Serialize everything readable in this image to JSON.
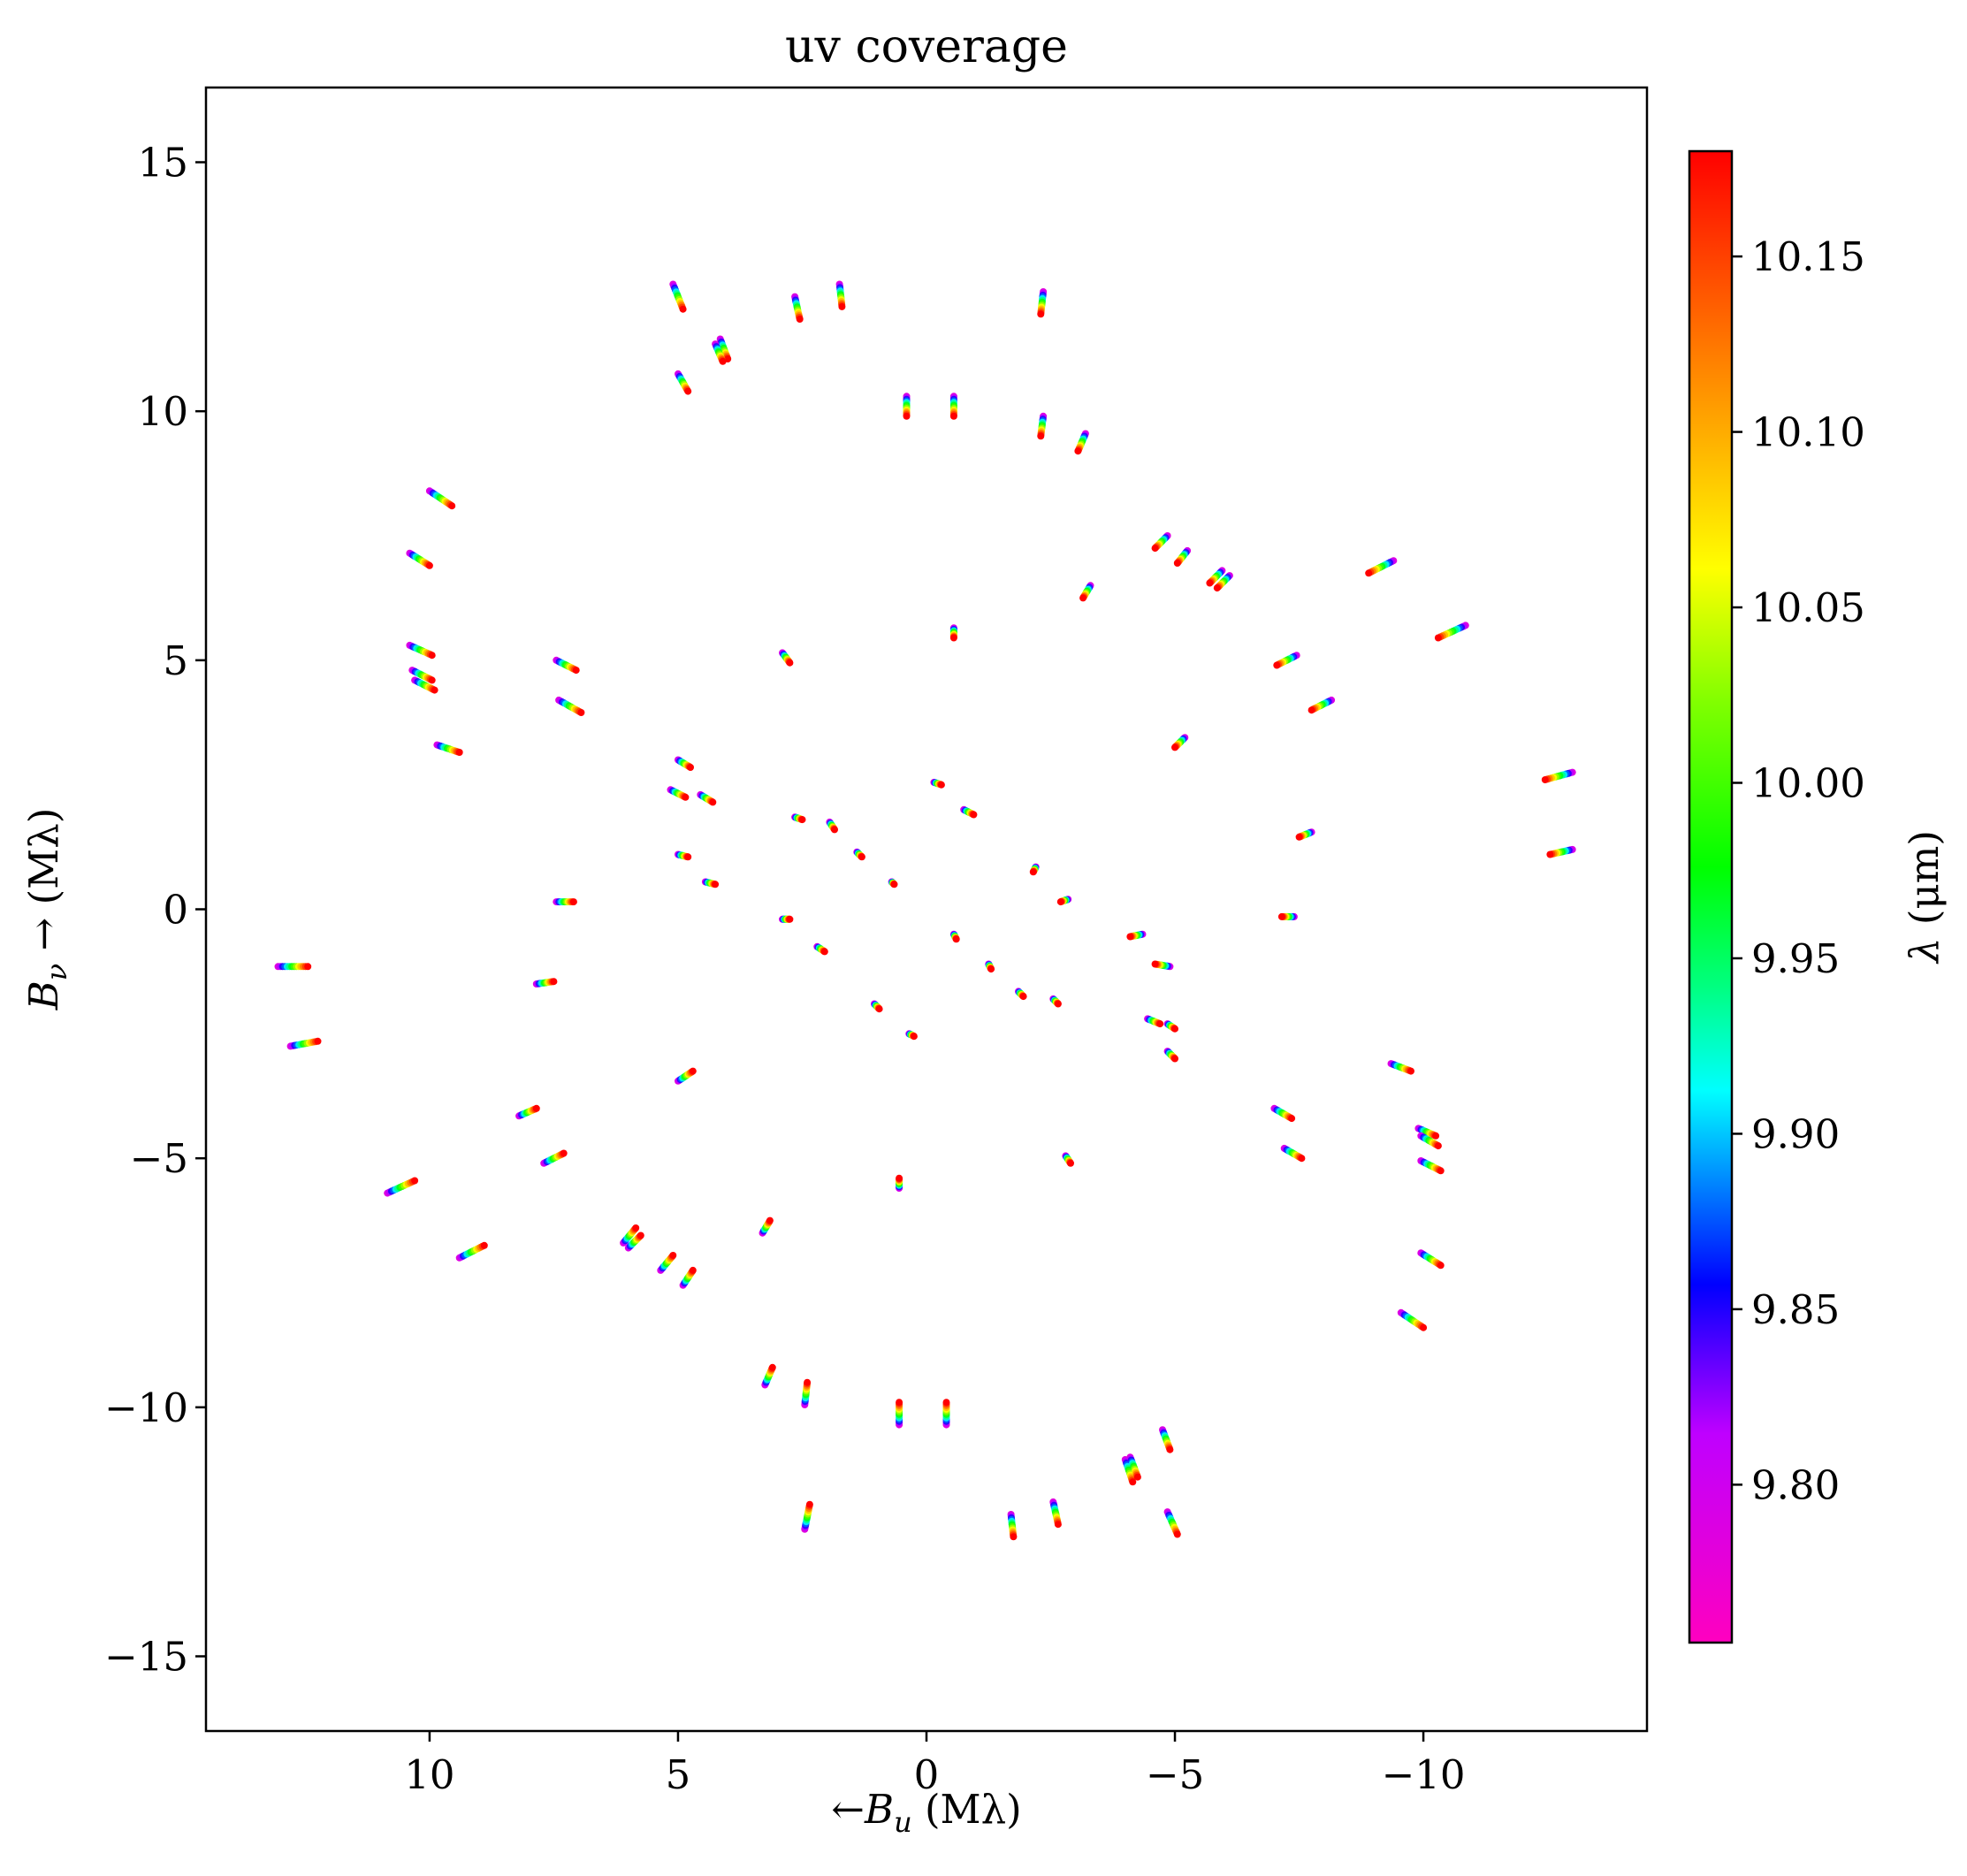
{
  "chart_data": {
    "type": "scatter",
    "title": "uv coverage",
    "xlabel_arrow": "←",
    "xlabel_symbol": "B",
    "xlabel_sub": "u",
    "xlabel_unit": "(Mλ)",
    "ylabel_symbol": "B",
    "ylabel_sub": "ν",
    "ylabel_arrow": "→",
    "ylabel_unit": "(Mλ)",
    "xlim": [
      14.5,
      -14.5
    ],
    "ylim": [
      -16.5,
      16.5
    ],
    "xticks": [
      10,
      5,
      0,
      -5,
      -10
    ],
    "xtick_labels": [
      "10",
      "5",
      "0",
      "−5",
      "−10"
    ],
    "yticks": [
      15,
      10,
      5,
      0,
      -5,
      -10,
      -15
    ],
    "ytick_labels": [
      "15",
      "10",
      "5",
      "0",
      "−5",
      "−10",
      "−15"
    ],
    "colorbar": {
      "label_symbol": "λ",
      "label_unit": "(μm)",
      "range": [
        9.755,
        10.18
      ],
      "ticks": [
        10.15,
        10.1,
        10.05,
        10.0,
        9.95,
        9.9,
        9.85,
        9.8
      ],
      "tick_labels": [
        "10.15",
        "10.10",
        "10.05",
        "10.00",
        "9.95",
        "9.90",
        "9.85",
        "9.80"
      ],
      "colormap": "gist_rainbow"
    },
    "wavelength_range": [
      9.785,
      10.18
    ],
    "note_segments": "each segment spans wavelength from blue/magenta end (short λ) to red end (long λ)",
    "segments": [
      [
        5.1,
        12.55,
        4.9,
        12.05
      ],
      [
        2.65,
        12.3,
        2.55,
        11.85
      ],
      [
        1.75,
        12.55,
        1.7,
        12.1
      ],
      [
        -2.35,
        12.4,
        -2.3,
        11.95
      ],
      [
        4.15,
        11.45,
        4.0,
        11.05
      ],
      [
        4.25,
        11.35,
        4.1,
        11.0
      ],
      [
        5.0,
        10.75,
        4.8,
        10.4
      ],
      [
        0.4,
        10.3,
        0.4,
        9.9
      ],
      [
        -0.55,
        10.3,
        -0.55,
        9.9
      ],
      [
        -2.35,
        9.9,
        -2.3,
        9.5
      ],
      [
        -3.2,
        9.55,
        -3.05,
        9.2
      ],
      [
        10.0,
        8.4,
        9.55,
        8.1
      ],
      [
        10.4,
        7.15,
        10.0,
        6.9
      ],
      [
        -4.85,
        7.5,
        -4.6,
        7.25
      ],
      [
        -5.25,
        7.2,
        -5.05,
        6.95
      ],
      [
        -5.95,
        6.8,
        -5.7,
        6.55
      ],
      [
        -6.1,
        6.7,
        -5.85,
        6.45
      ],
      [
        -9.4,
        7.0,
        -8.9,
        6.75
      ],
      [
        -3.3,
        6.5,
        -3.15,
        6.25
      ],
      [
        -0.55,
        5.65,
        -0.55,
        5.45
      ],
      [
        -10.85,
        5.7,
        -10.3,
        5.45
      ],
      [
        10.4,
        5.3,
        9.95,
        5.1
      ],
      [
        2.9,
        5.15,
        2.75,
        4.95
      ],
      [
        7.45,
        5.0,
        7.05,
        4.8
      ],
      [
        -7.45,
        5.1,
        -7.05,
        4.9
      ],
      [
        10.35,
        4.8,
        9.95,
        4.6
      ],
      [
        10.3,
        4.6,
        9.9,
        4.4
      ],
      [
        7.4,
        4.2,
        6.95,
        3.95
      ],
      [
        -8.15,
        4.2,
        -7.75,
        4.0
      ],
      [
        9.85,
        3.3,
        9.4,
        3.15
      ],
      [
        -5.2,
        3.45,
        -5.0,
        3.25
      ],
      [
        5.0,
        3.0,
        4.75,
        2.85
      ],
      [
        -13.0,
        2.75,
        -12.45,
        2.6
      ],
      [
        5.15,
        2.4,
        4.85,
        2.25
      ],
      [
        4.55,
        2.3,
        4.3,
        2.15
      ],
      [
        -0.15,
        2.55,
        -0.3,
        2.5
      ],
      [
        -0.75,
        2.0,
        -0.95,
        1.9
      ],
      [
        2.65,
        1.85,
        2.5,
        1.8
      ],
      [
        1.95,
        1.75,
        1.85,
        1.6
      ],
      [
        1.4,
        1.15,
        1.3,
        1.05
      ],
      [
        -7.75,
        1.55,
        -7.5,
        1.45
      ],
      [
        -13.0,
        1.2,
        -12.55,
        1.1
      ],
      [
        5.0,
        1.1,
        4.8,
        1.05
      ],
      [
        4.45,
        0.55,
        4.25,
        0.5
      ],
      [
        0.7,
        0.55,
        0.65,
        0.5
      ],
      [
        -2.2,
        0.85,
        -2.15,
        0.75
      ],
      [
        -2.85,
        0.2,
        -2.7,
        0.15
      ],
      [
        7.45,
        0.15,
        7.1,
        0.15
      ],
      [
        2.9,
        -0.2,
        2.75,
        -0.2
      ],
      [
        -7.4,
        -0.15,
        -7.15,
        -0.15
      ],
      [
        -0.55,
        -0.5,
        -0.6,
        -0.6
      ],
      [
        -4.35,
        -0.5,
        -4.1,
        -0.55
      ],
      [
        -4.9,
        -1.15,
        -4.6,
        -1.1
      ],
      [
        13.05,
        -1.15,
        12.45,
        -1.15
      ],
      [
        2.2,
        -0.75,
        2.05,
        -0.85
      ],
      [
        -1.25,
        -1.1,
        -1.3,
        -1.2
      ],
      [
        -1.85,
        -1.65,
        -1.95,
        -1.75
      ],
      [
        -2.55,
        -1.8,
        -2.65,
        -1.9
      ],
      [
        7.85,
        -1.5,
        7.5,
        -1.45
      ],
      [
        1.05,
        -1.9,
        0.95,
        -2.0
      ],
      [
        0.35,
        -2.5,
        0.25,
        -2.55
      ],
      [
        -4.45,
        -2.2,
        -4.7,
        -2.3
      ],
      [
        -4.85,
        -2.3,
        -5.0,
        -2.4
      ],
      [
        -4.85,
        -2.85,
        -5.0,
        -3.0
      ],
      [
        12.8,
        -2.75,
        12.25,
        -2.65
      ],
      [
        -9.35,
        -3.1,
        -9.75,
        -3.25
      ],
      [
        5.0,
        -3.45,
        4.7,
        -3.25
      ],
      [
        -7.0,
        -4.0,
        -7.35,
        -4.2
      ],
      [
        8.2,
        -4.15,
        7.85,
        -4.0
      ],
      [
        -9.9,
        -4.4,
        -10.25,
        -4.55
      ],
      [
        -9.95,
        -4.55,
        -10.3,
        -4.75
      ],
      [
        -7.2,
        -4.8,
        -7.55,
        -5.0
      ],
      [
        7.7,
        -5.1,
        7.3,
        -4.9
      ],
      [
        -2.8,
        -4.95,
        -2.9,
        -5.1
      ],
      [
        -9.95,
        -5.05,
        -10.35,
        -5.25
      ],
      [
        10.85,
        -5.7,
        10.3,
        -5.45
      ],
      [
        0.55,
        -5.6,
        0.55,
        -5.4
      ],
      [
        3.3,
        -6.5,
        3.15,
        -6.25
      ],
      [
        6.1,
        -6.7,
        5.85,
        -6.4
      ],
      [
        6.0,
        -6.8,
        5.75,
        -6.55
      ],
      [
        5.35,
        -7.25,
        5.1,
        -6.95
      ],
      [
        4.9,
        -7.55,
        4.7,
        -7.25
      ],
      [
        9.4,
        -7.0,
        8.9,
        -6.75
      ],
      [
        -9.95,
        -6.9,
        -10.35,
        -7.15
      ],
      [
        -9.55,
        -8.1,
        -10.0,
        -8.4
      ],
      [
        3.25,
        -9.55,
        3.1,
        -9.2
      ],
      [
        2.45,
        -9.95,
        2.4,
        -9.5
      ],
      [
        0.55,
        -10.35,
        0.55,
        -9.9
      ],
      [
        -0.4,
        -10.35,
        -0.4,
        -9.9
      ],
      [
        -4.75,
        -10.45,
        -4.9,
        -10.85
      ],
      [
        -4.0,
        -11.05,
        -4.15,
        -11.5
      ],
      [
        -4.1,
        -11.0,
        -4.25,
        -11.4
      ],
      [
        2.45,
        -12.45,
        2.35,
        -11.95
      ],
      [
        -1.7,
        -12.15,
        -1.75,
        -12.6
      ],
      [
        -2.55,
        -11.9,
        -2.65,
        -12.35
      ],
      [
        -4.85,
        -12.1,
        -5.05,
        -12.55
      ]
    ]
  }
}
